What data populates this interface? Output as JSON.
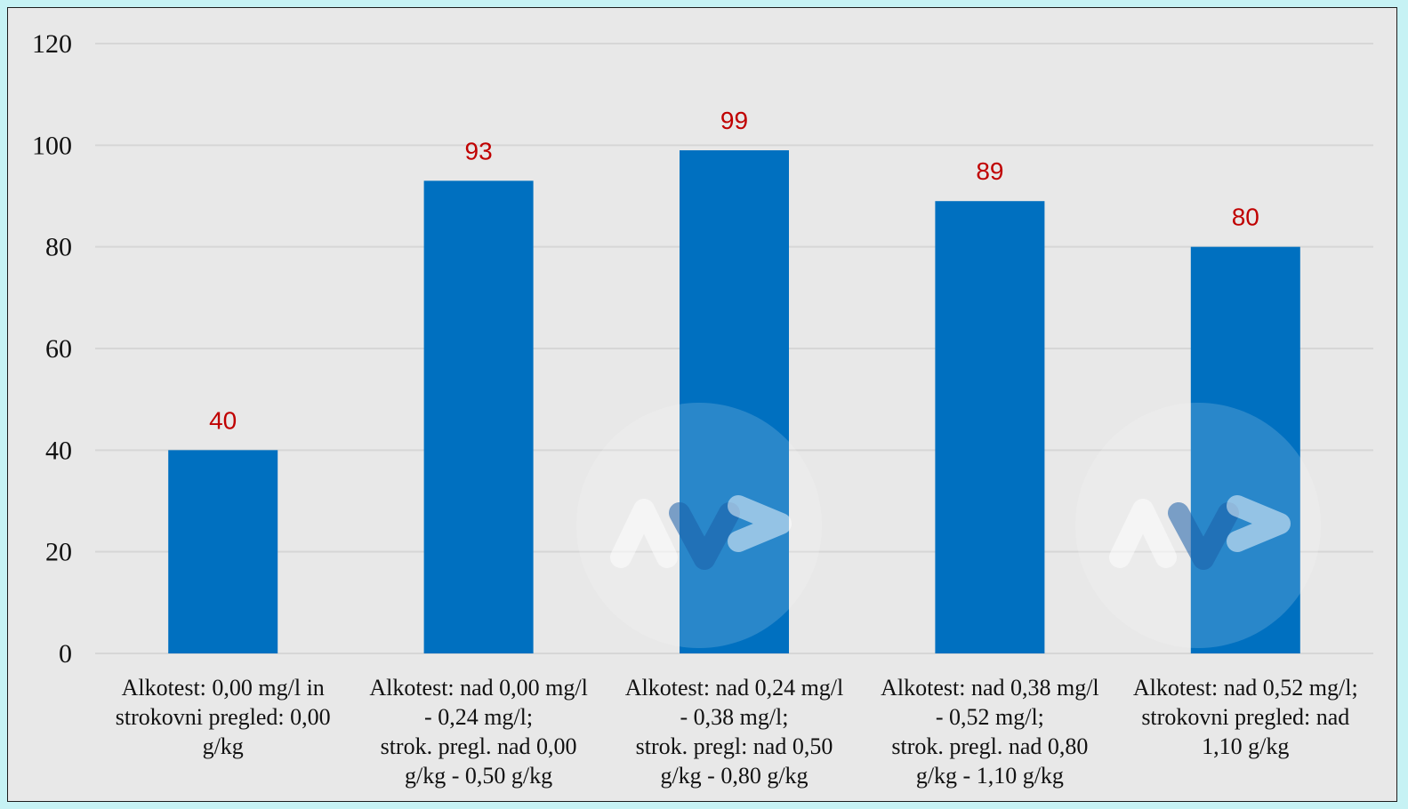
{
  "chart_data": {
    "type": "bar",
    "categories": [
      "Alkotest: 0,00 mg/l in\nstrokovni pregled: 0,00\ng/kg",
      "Alkotest: nad 0,00 mg/l\n-  0,24 mg/l;\nstrok. pregl. nad 0,00\ng/kg - 0,50 g/kg",
      "Alkotest: nad 0,24 mg/l\n-  0,38 mg/l;\nstrok. pregl: nad 0,50\ng/kg - 0,80 g/kg",
      "Alkotest: nad 0,38 mg/l\n-  0,52 mg/l;\nstrok. pregl. nad 0,80\ng/kg - 1,10 g/kg",
      "Alkotest: nad 0,52 mg/l;\nstrokovni pregled: nad\n1,10 g/kg"
    ],
    "values": [
      40,
      93,
      99,
      89,
      80
    ],
    "data_labels": [
      "40",
      "93",
      "99",
      "89",
      "80"
    ],
    "yticks": [
      "0",
      "20",
      "40",
      "60",
      "80",
      "100",
      "120"
    ],
    "ylim": [
      0,
      120
    ],
    "title": "",
    "xlabel": "",
    "ylabel": "",
    "grid": true,
    "legend": "none",
    "colors": {
      "bar": "#0070c0",
      "data_label": "#c00000",
      "gridline": "#d6d6d6",
      "plot_background": "#e8e8e8",
      "page_background": "#c6f2f4",
      "watermark": "#ffffff"
    }
  }
}
